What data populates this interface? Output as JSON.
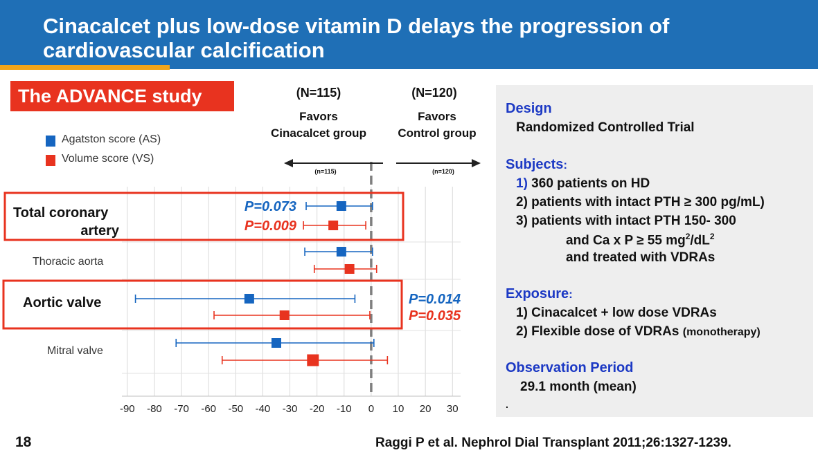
{
  "slide": {
    "title_line1": "Cinacalcet plus low-dose vitamin D delays the progression of",
    "title_line2": "cardiovascular calcification",
    "study_label": "The ADVANCE study",
    "page_number": "18",
    "citation": "Raggi P et al. Nephrol Dial Transplant 2011;26:1327-1239."
  },
  "colors": {
    "header_bg": "#1f6fb6",
    "accent": "#f2a51a",
    "as_blue": "#1565c0",
    "vs_red": "#e8331f",
    "heading_blue": "#1c39c4"
  },
  "info": {
    "design_heading": "Design",
    "design_text": "Randomized Controlled Trial",
    "subjects_heading": "Subjects",
    "subjects_colon": ":",
    "subjects": [
      {
        "num": "1)",
        "text": " 360 patients on HD"
      },
      {
        "num": "2)",
        "text": " patients with intact PTH ≥ 300 pg/mL)"
      },
      {
        "num": "3)",
        "text": " patients with intact PTH 150- 300"
      }
    ],
    "subject3_line2_pre": "and Ca x P ≥ 55 mg",
    "subject3_sup1": "2",
    "subject3_mid": "/dL",
    "subject3_sup2": "2",
    "subject3_line3": "and treated with VDRAs",
    "exposure_heading": "Exposure",
    "exposure_colon": ":",
    "exposure1": "1) Cinacalcet + low dose VDRAs",
    "exposure2_main": "2) Flexible dose of VDRAs ",
    "exposure2_small": "(monotherapy)",
    "observation_heading": "Observation Period",
    "observation_text": "29.1 month (mean)",
    "trailing_mark": "."
  },
  "chart_data": {
    "type": "forest",
    "header_left_n": "(N=115)",
    "header_right_n": "(N=120)",
    "favors_left_1": "Favors",
    "favors_left_2": "Cinacalcet group",
    "favors_right_1": "Favors",
    "favors_right_2": "Control group",
    "arrow_left_n": "(n=115)",
    "arrow_right_n": "(n=120)",
    "legend": [
      {
        "name": "Agatston score (AS)",
        "color": "#1565c0"
      },
      {
        "name": "Volume score (VS)",
        "color": "#e8331f"
      }
    ],
    "xlim": [
      -92,
      33
    ],
    "xticks": [
      -90,
      -80,
      -70,
      -60,
      -50,
      -40,
      -30,
      -20,
      -10,
      0,
      10,
      20,
      30
    ],
    "reference_line": 0,
    "groups": [
      {
        "label_lines": [
          "Total coronary",
          "artery"
        ],
        "highlight": true,
        "rows": [
          {
            "series": "AS",
            "estimate": -11,
            "lower": -24,
            "upper": 0.5,
            "p_label": "P=0.073"
          },
          {
            "series": "VS",
            "estimate": -14,
            "lower": -25,
            "upper": -2,
            "p_label": "P=0.009"
          }
        ]
      },
      {
        "label_lines": [
          "Thoracic aorta"
        ],
        "highlight": false,
        "rows": [
          {
            "series": "AS",
            "estimate": -11,
            "lower": -24.5,
            "upper": 0.5,
            "p_label": ""
          },
          {
            "series": "VS",
            "estimate": -8,
            "lower": -21,
            "upper": 2,
            "p_label": ""
          }
        ]
      },
      {
        "label_lines": [
          "Aortic valve"
        ],
        "highlight": true,
        "rows": [
          {
            "series": "AS",
            "estimate": -45,
            "lower": -87,
            "upper": -6,
            "p_label": "P=0.014"
          },
          {
            "series": "VS",
            "estimate": -32,
            "lower": -58,
            "upper": -0.5,
            "p_label": "P=0.035"
          }
        ]
      },
      {
        "label_lines": [
          "Mitral valve"
        ],
        "highlight": false,
        "rows": [
          {
            "series": "AS",
            "estimate": -35,
            "lower": -72,
            "upper": 1,
            "p_label": ""
          },
          {
            "series": "VS",
            "estimate": -21.5,
            "lower": -55,
            "upper": 6,
            "p_label": ""
          }
        ]
      }
    ]
  }
}
